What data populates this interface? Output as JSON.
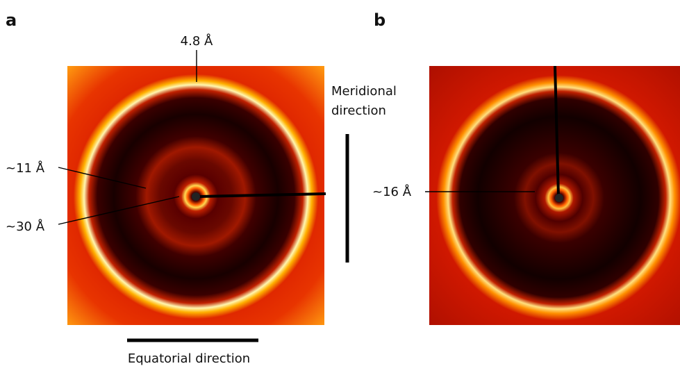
{
  "panels": [
    {
      "label": "a",
      "annotations": [
        "4.8 Å",
        "~11 Å",
        "~30 Å"
      ],
      "meridional": [
        "Meridional",
        "direction"
      ],
      "equatorial": "Equatorial direction"
    },
    {
      "label": "b",
      "annotations": [
        "~16 Å"
      ]
    }
  ]
}
